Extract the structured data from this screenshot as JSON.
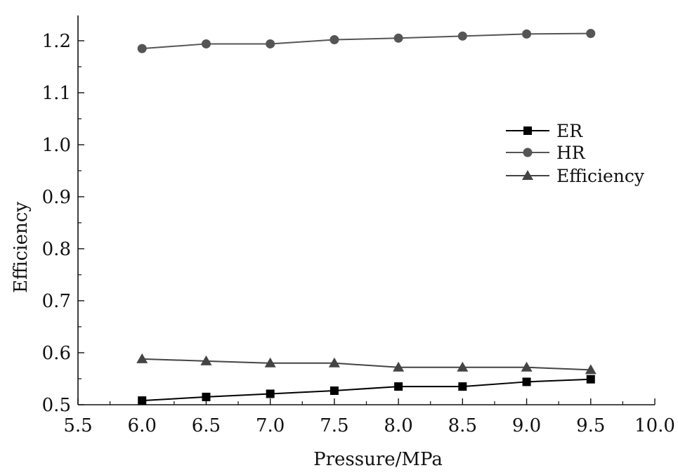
{
  "chart_data": {
    "type": "line",
    "title": "",
    "xlabel": "Pressure/MPa",
    "ylabel": "Efficiency",
    "xlim": [
      5.5,
      10.0
    ],
    "ylim": [
      0.5,
      1.25
    ],
    "x_ticks": [
      "5.5",
      "6.0",
      "6.5",
      "7.0",
      "7.5",
      "8.0",
      "8.5",
      "9.0",
      "9.5",
      "10.0"
    ],
    "y_ticks": [
      "0.5",
      "0.6",
      "0.7",
      "0.8",
      "0.9",
      "1.0",
      "1.1",
      "1.2"
    ],
    "x": [
      6.0,
      6.5,
      7.0,
      7.5,
      8.0,
      8.5,
      9.0,
      9.5
    ],
    "grid": false,
    "legend_position": "right",
    "series": [
      {
        "name": "ER",
        "marker": "square",
        "color": "#000000",
        "values": [
          0.508,
          0.515,
          0.521,
          0.527,
          0.535,
          0.535,
          0.544,
          0.549
        ]
      },
      {
        "name": "HR",
        "marker": "circle",
        "color": "#555555",
        "values": [
          1.185,
          1.194,
          1.194,
          1.202,
          1.205,
          1.209,
          1.213,
          1.214
        ]
      },
      {
        "name": "Efficiency",
        "marker": "triangle",
        "color": "#444444",
        "values": [
          0.588,
          0.584,
          0.58,
          0.58,
          0.572,
          0.572,
          0.572,
          0.567
        ]
      }
    ]
  }
}
